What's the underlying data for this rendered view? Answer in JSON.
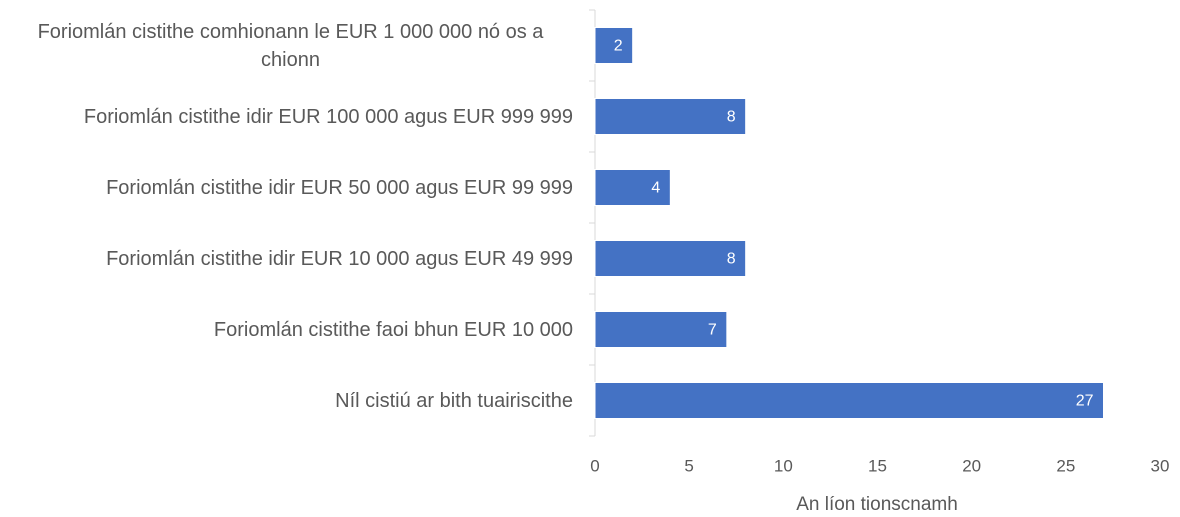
{
  "chart_data": {
    "type": "bar",
    "orientation": "horizontal",
    "categories": [
      "Foriomlán cistithe comhionann le EUR 1 000 000 nó os a chionn",
      "Foriomlán cistithe idir EUR 100 000 agus EUR 999 999",
      "Foriomlán cistithe idir EUR 50 000 agus EUR 99 999",
      "Foriomlán cistithe idir EUR 10 000 agus EUR 49 999",
      "Foriomlán cistithe faoi bhun EUR 10 000",
      "Níl cistiú ar bith tuairiscithe"
    ],
    "values": [
      2,
      8,
      4,
      8,
      7,
      27
    ],
    "color": "#4472c4",
    "xlabel": "An líon tionscnamh",
    "xlim": [
      0,
      30
    ],
    "xticks": [
      0,
      5,
      10,
      15,
      20,
      25,
      30
    ],
    "grid": false
  }
}
